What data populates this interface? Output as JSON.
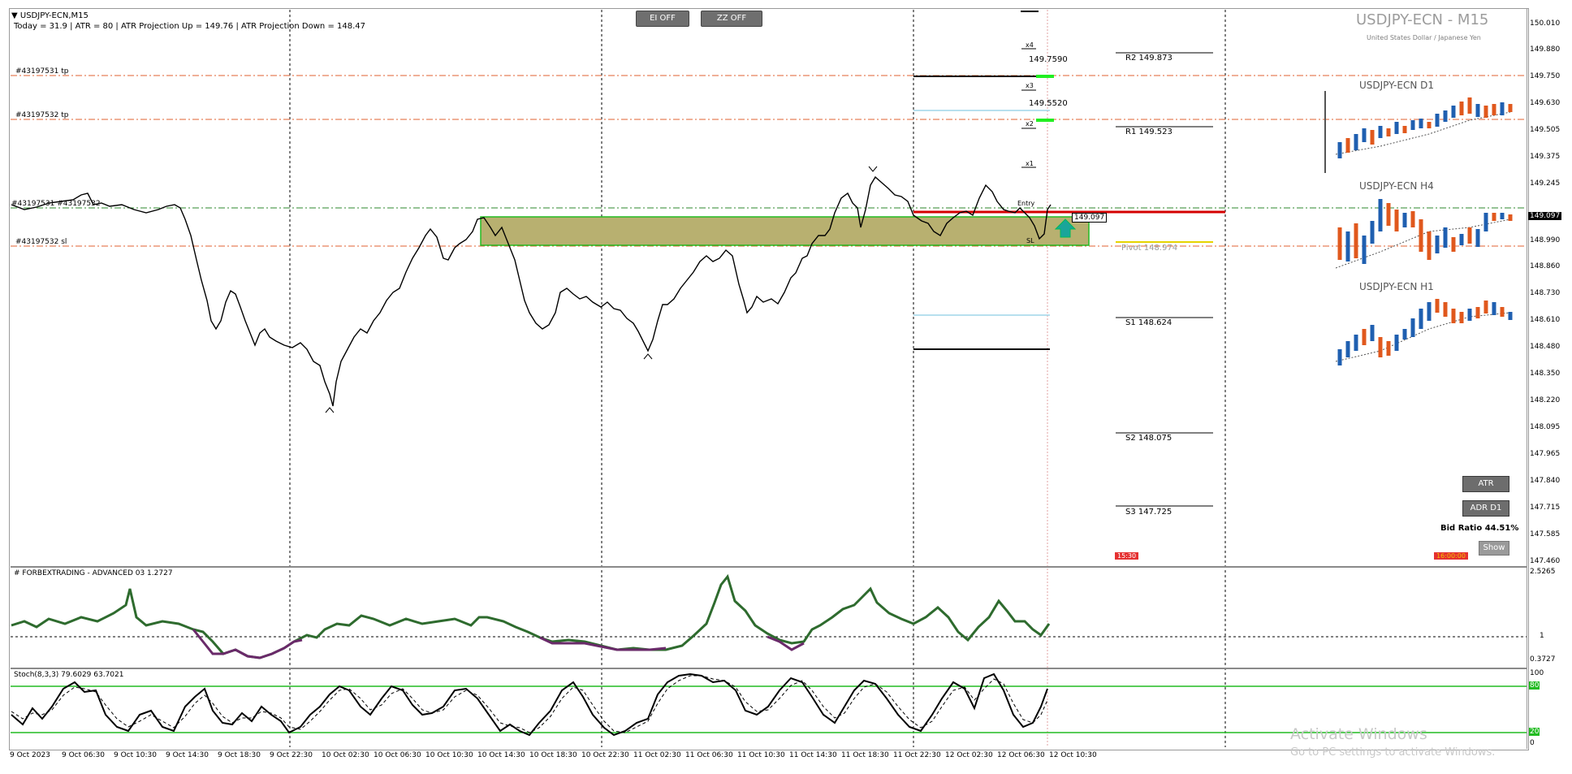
{
  "header": {
    "symbol_line": "USDJPY-ECN,M15",
    "info_line": "Today = 31.9  |  ATR = 80  |  ATR Projection Up = 149.76  |  ATR Projection Down = 148.47",
    "big_title": "USDJPY-ECN - M15",
    "subtitle": "United States Dollar / Japanese Yen"
  },
  "buttons": {
    "ei_off": "EI OFF",
    "zz_off": "ZZ OFF",
    "atr": "ATR",
    "adr_d1": "ADR D1",
    "show": "Show"
  },
  "orders": {
    "tp1": "#43197531 tp",
    "tp2": "#43197532 tp",
    "entry_label": "#43197531 #43197532",
    "sl": "#43197532 sl"
  },
  "levels": {
    "r2": "R2 149.873",
    "r1": "R1 149.523",
    "pivot": "Pivot 148.974",
    "s1": "S1 148.624",
    "s2": "S2 148.075",
    "s3": "S3 147.725",
    "x4": "x4",
    "x3": "x3",
    "x2": "x2",
    "x1": "x1",
    "val_x4": "149.7590",
    "val_x3": "149.5520",
    "entry": "Entry",
    "sl_marker": "SL",
    "current_box": "149.097"
  },
  "mini_charts": {
    "d1": "USDJPY-ECN D1",
    "h4": "USDJPY-ECN H4",
    "h1": "USDJPY-ECN H1"
  },
  "bid_ratio": "Bid Ratio 44.51%",
  "time_tags": {
    "left": "15:30",
    "right": "16:00:00"
  },
  "price_axis": [
    "150.010",
    "149.880",
    "149.750",
    "149.630",
    "149.505",
    "149.375",
    "149.245",
    "149.097",
    "148.990",
    "148.860",
    "148.730",
    "148.610",
    "148.480",
    "148.350",
    "148.220",
    "148.095",
    "147.965",
    "147.840",
    "147.715",
    "147.585",
    "147.460"
  ],
  "current_price": "149.097",
  "indicator1": {
    "title": "# FORBEXTRADING - ADVANCED 03 1.2727",
    "axis": [
      "2.5265",
      "1",
      "0.3727"
    ]
  },
  "indicator2": {
    "title": "Stoch(8,3,3) 79.6029 63.7021",
    "axis": [
      "100",
      "80",
      "20",
      "0"
    ]
  },
  "time_axis": [
    "9 Oct 2023",
    "9 Oct 06:30",
    "9 Oct 10:30",
    "9 Oct 14:30",
    "9 Oct 18:30",
    "9 Oct 22:30",
    "10 Oct 02:30",
    "10 Oct 06:30",
    "10 Oct 10:30",
    "10 Oct 14:30",
    "10 Oct 18:30",
    "10 Oct 22:30",
    "11 Oct 02:30",
    "11 Oct 06:30",
    "11 Oct 10:30",
    "11 Oct 14:30",
    "11 Oct 18:30",
    "11 Oct 22:30",
    "12 Oct 02:30",
    "12 Oct 06:30",
    "12 Oct 10:30"
  ],
  "watermark": {
    "line1": "Activate Windows",
    "line2": "Go to PC settings to activate Windows."
  },
  "colors": {
    "order_line": "#e06030",
    "resistance_red": "#d40000",
    "zone_fill": "#b8b070",
    "zone_border": "#22bb22",
    "stoch_level": "#22bb22",
    "indicator_up": "#2e6b2e",
    "indicator_down": "#6a2a6a",
    "pivot": "#e5d400"
  }
}
